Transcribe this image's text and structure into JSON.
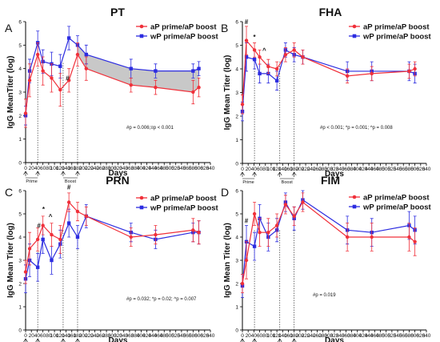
{
  "colors": {
    "aP": "#f0303a",
    "wP": "#2c2ce0",
    "band": "#c8c8c8"
  },
  "common": {
    "legend_aP": "aP prime/aP boost",
    "legend_wP": "wP prime/aP boost",
    "prime_label": "Prime",
    "boost_label": "Boost",
    "xlabel": "Days",
    "x_ticks": [
      0,
      20,
      40,
      60,
      80,
      100,
      120,
      140,
      160,
      180,
      200,
      220,
      240,
      260,
      280,
      300,
      320,
      340,
      360,
      380,
      400,
      420,
      440,
      460,
      480,
      500,
      520,
      540,
      560,
      580,
      600,
      620,
      640
    ],
    "y_ticks": [
      0,
      1,
      2,
      3,
      4,
      5,
      6
    ]
  },
  "chart_data": [
    {
      "type": "line",
      "panel": "A",
      "title": "PT",
      "xlabel": "Days",
      "ylabel": "IgG MeanTiter (log)",
      "xlim": [
        0,
        640
      ],
      "ylim": [
        0,
        6
      ],
      "shaded_between_series_after_day": 180,
      "series": [
        {
          "name": "aP prime/aP boost",
          "x": [
            0,
            14,
            42,
            60,
            90,
            120,
            150,
            180,
            210,
            365,
            450,
            580,
            600
          ],
          "y": [
            2.1,
            3.5,
            4.6,
            3.9,
            3.6,
            3.1,
            3.5,
            4.6,
            4.0,
            3.3,
            3.2,
            3.0,
            3.2
          ],
          "err": [
            0.6,
            0.7,
            0.5,
            0.6,
            0.6,
            0.7,
            0.5,
            0.5,
            0.5,
            0.3,
            0.3,
            0.5,
            0.4
          ]
        },
        {
          "name": "wP prime/aP boost",
          "x": [
            0,
            14,
            42,
            60,
            90,
            120,
            150,
            180,
            210,
            365,
            450,
            580,
            600
          ],
          "y": [
            2.0,
            3.9,
            5.1,
            4.3,
            4.2,
            4.1,
            5.3,
            5.0,
            4.6,
            4.0,
            3.9,
            3.9,
            4.0
          ],
          "err": [
            0.4,
            0.5,
            0.5,
            0.5,
            0.5,
            0.5,
            0.5,
            0.4,
            0.4,
            0.4,
            0.3,
            0.3,
            0.3
          ]
        }
      ],
      "annotations": [
        {
          "text": "#",
          "x": 145,
          "y": 3.5
        }
      ],
      "stats_text": "#p = 0.006;≡p < 0.001"
    },
    {
      "type": "line",
      "panel": "B",
      "title": "FHA",
      "xlabel": "Days",
      "ylabel": "IgG Mean Titer (log)",
      "xlim": [
        0,
        640
      ],
      "ylim": [
        0,
        6
      ],
      "series": [
        {
          "name": "aP prime/aP boost",
          "x": [
            0,
            14,
            42,
            60,
            90,
            120,
            150,
            180,
            210,
            365,
            450,
            580,
            600
          ],
          "y": [
            2.5,
            5.2,
            4.8,
            4.5,
            4.1,
            4.0,
            4.6,
            4.8,
            4.5,
            3.7,
            3.8,
            3.9,
            4.0
          ],
          "err": [
            0.4,
            0.6,
            0.3,
            0.3,
            0.3,
            0.3,
            0.3,
            0.3,
            0.3,
            0.3,
            0.3,
            0.3,
            0.3
          ]
        },
        {
          "name": "wP prime/aP boost",
          "x": [
            0,
            14,
            42,
            60,
            90,
            120,
            150,
            180,
            210,
            365,
            450,
            580,
            600
          ],
          "y": [
            2.2,
            4.5,
            4.4,
            3.8,
            3.8,
            3.5,
            4.8,
            4.6,
            4.5,
            3.9,
            3.9,
            3.9,
            3.8
          ],
          "err": [
            0.4,
            0.6,
            0.4,
            0.4,
            0.4,
            0.4,
            0.3,
            0.3,
            0.3,
            0.4,
            0.4,
            0.4,
            0.4
          ]
        }
      ],
      "annotations": [
        {
          "text": "#",
          "x": 14,
          "y": 5.9
        },
        {
          "text": "*",
          "x": 42,
          "y": 5.25
        },
        {
          "text": "^",
          "x": 76,
          "y": 4.7
        }
      ],
      "stats_text": "#p < 0.001; *p = 0.001; ^p = 0.008"
    },
    {
      "type": "line",
      "panel": "C",
      "title": "PRN",
      "xlabel": "Days",
      "ylabel": "IgG Mean Titer (log)",
      "xlim": [
        0,
        640
      ],
      "ylim": [
        0,
        6
      ],
      "series": [
        {
          "name": "aP prime/aP boost",
          "x": [
            0,
            14,
            42,
            60,
            90,
            120,
            150,
            180,
            210,
            365,
            450,
            580,
            600
          ],
          "y": [
            2.5,
            3.5,
            3.9,
            4.5,
            4.1,
            3.9,
            5.5,
            5.1,
            4.9,
            4.0,
            4.1,
            4.3,
            4.2
          ],
          "err": [
            0.5,
            0.7,
            0.5,
            0.4,
            0.5,
            0.6,
            0.4,
            0.4,
            0.4,
            0.4,
            0.4,
            0.5,
            0.5
          ]
        },
        {
          "name": "wP prime/aP boost",
          "x": [
            0,
            14,
            42,
            60,
            90,
            120,
            150,
            180,
            210,
            365,
            450,
            580,
            600
          ],
          "y": [
            2.2,
            3.0,
            2.7,
            3.9,
            3.0,
            3.7,
            4.6,
            4.0,
            4.9,
            4.2,
            3.9,
            4.2,
            4.2
          ],
          "err": [
            0.6,
            0.7,
            0.6,
            0.6,
            0.6,
            0.6,
            0.6,
            0.5,
            0.5,
            0.4,
            0.4,
            0.4,
            0.5
          ]
        }
      ],
      "annotations": [
        {
          "text": "#",
          "x": 46,
          "y": 4.4
        },
        {
          "text": "*",
          "x": 62,
          "y": 5.1
        },
        {
          "text": "^",
          "x": 86,
          "y": 4.8
        },
        {
          "text": "#",
          "x": 150,
          "y": 6.05
        }
      ],
      "stats_text": "#p = 0.032; *p = 0.02; ^p = 0.007"
    },
    {
      "type": "line",
      "panel": "D",
      "title": "FIM",
      "xlabel": "Days",
      "ylabel": "IgG Mean Titer (log)",
      "xlim": [
        0,
        640
      ],
      "ylim": [
        0,
        6
      ],
      "series": [
        {
          "name": "aP prime/aP boost",
          "x": [
            0,
            14,
            42,
            60,
            90,
            120,
            150,
            180,
            210,
            365,
            450,
            580,
            600
          ],
          "y": [
            2.0,
            3.0,
            5.0,
            4.2,
            4.2,
            4.5,
            5.4,
            4.9,
            5.5,
            4.0,
            4.0,
            4.0,
            3.8
          ],
          "err": [
            0.4,
            0.8,
            0.5,
            0.6,
            0.6,
            0.5,
            0.4,
            0.4,
            0.4,
            0.6,
            0.6,
            0.6,
            0.6
          ]
        },
        {
          "name": "wP prime/aP boost",
          "x": [
            0,
            14,
            42,
            60,
            90,
            120,
            150,
            180,
            210,
            365,
            450,
            580,
            600
          ],
          "y": [
            1.9,
            3.8,
            3.6,
            4.8,
            4.0,
            4.3,
            5.5,
            4.8,
            5.6,
            4.3,
            4.2,
            4.5,
            4.3
          ],
          "err": [
            0.5,
            0.7,
            0.6,
            0.6,
            0.6,
            0.5,
            0.4,
            0.5,
            0.4,
            0.6,
            0.6,
            0.6,
            0.6
          ]
        }
      ],
      "annotations": [
        {
          "text": "#",
          "x": 14,
          "y": 4.6
        }
      ],
      "stats_text": "#p = 0.019"
    }
  ]
}
